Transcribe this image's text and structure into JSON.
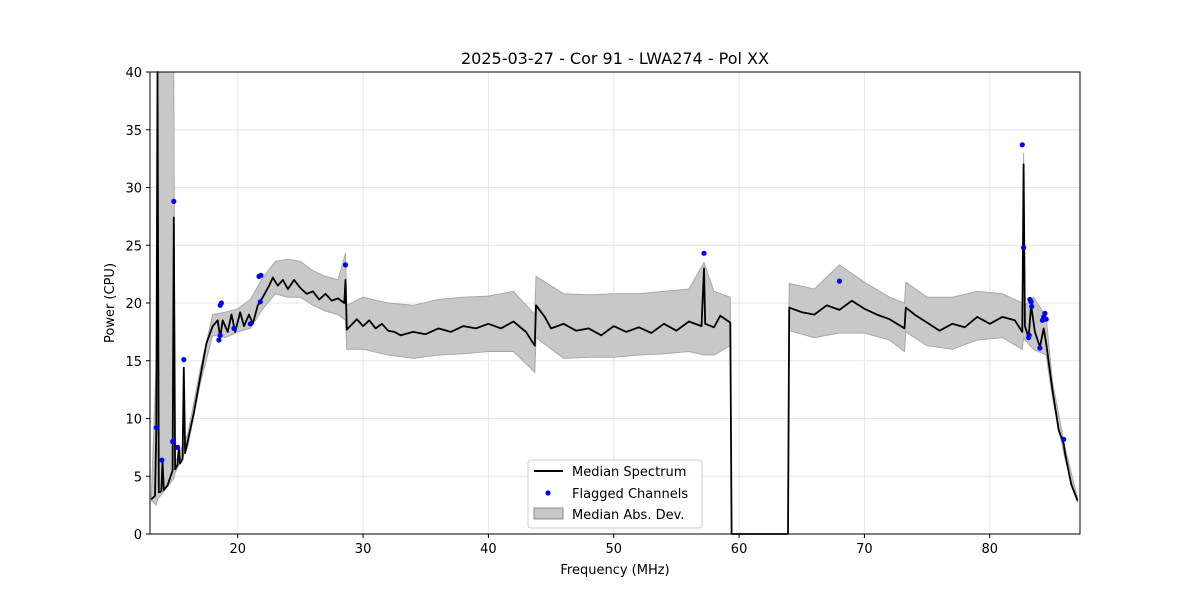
{
  "chart_data": {
    "type": "line",
    "title": "2025-03-27 - Cor 91 - LWA274 - Pol XX",
    "xlabel": "Frequency (MHz)",
    "ylabel": "Power (CPU)",
    "xlim": [
      13,
      87.2
    ],
    "ylim": [
      0,
      40
    ],
    "grid": true,
    "x_ticks": [
      20,
      30,
      40,
      50,
      60,
      70,
      80
    ],
    "y_ticks": [
      0,
      5,
      10,
      15,
      20,
      25,
      30,
      35,
      40
    ],
    "legend_position": "bottom-center",
    "legend": [
      "Median Spectrum",
      "Flagged Channels",
      "Median Abs. Dev."
    ],
    "series": [
      {
        "name": "Median Spectrum",
        "color": "#000000",
        "points": [
          [
            13.1,
            3.0
          ],
          [
            13.4,
            3.3
          ],
          [
            13.5,
            9.0
          ],
          [
            13.6,
            40.0
          ],
          [
            13.7,
            3.6
          ],
          [
            13.9,
            3.7
          ],
          [
            14.0,
            6.3
          ],
          [
            14.1,
            3.8
          ],
          [
            14.4,
            4.2
          ],
          [
            14.8,
            5.5
          ],
          [
            14.9,
            27.4
          ],
          [
            15.0,
            5.6
          ],
          [
            15.2,
            6.0
          ],
          [
            15.3,
            7.5
          ],
          [
            15.4,
            6.1
          ],
          [
            15.6,
            6.5
          ],
          [
            15.7,
            14.4
          ],
          [
            15.8,
            7.0
          ],
          [
            16.0,
            8.0
          ],
          [
            16.5,
            10.5
          ],
          [
            17.0,
            13.5
          ],
          [
            17.5,
            16.5
          ],
          [
            18.0,
            18.0
          ],
          [
            18.4,
            18.5
          ],
          [
            18.6,
            17.0
          ],
          [
            18.8,
            18.5
          ],
          [
            19.2,
            17.5
          ],
          [
            19.5,
            19.0
          ],
          [
            19.8,
            17.5
          ],
          [
            20.2,
            19.2
          ],
          [
            20.5,
            18.0
          ],
          [
            20.9,
            19.0
          ],
          [
            21.2,
            18.2
          ],
          [
            21.6,
            19.8
          ],
          [
            22.0,
            20.5
          ],
          [
            22.5,
            21.5
          ],
          [
            22.8,
            22.2
          ],
          [
            23.2,
            21.5
          ],
          [
            23.6,
            22.0
          ],
          [
            24.0,
            21.2
          ],
          [
            24.5,
            22.0
          ],
          [
            25.0,
            21.3
          ],
          [
            25.5,
            20.8
          ],
          [
            26.0,
            21.0
          ],
          [
            26.5,
            20.3
          ],
          [
            27.0,
            20.8
          ],
          [
            27.5,
            20.2
          ],
          [
            28.0,
            20.4
          ],
          [
            28.5,
            20.0
          ],
          [
            28.6,
            22.0
          ],
          [
            28.7,
            17.7
          ],
          [
            29.5,
            18.6
          ],
          [
            30.0,
            18.0
          ],
          [
            30.5,
            18.5
          ],
          [
            31.0,
            17.8
          ],
          [
            31.5,
            18.2
          ],
          [
            32.0,
            17.6
          ],
          [
            32.5,
            17.5
          ],
          [
            33.0,
            17.2
          ],
          [
            34.0,
            17.5
          ],
          [
            35.0,
            17.3
          ],
          [
            36.0,
            17.8
          ],
          [
            37.0,
            17.5
          ],
          [
            38.0,
            18.0
          ],
          [
            39.0,
            17.8
          ],
          [
            40.0,
            18.2
          ],
          [
            41.0,
            17.8
          ],
          [
            42.0,
            18.4
          ],
          [
            43.0,
            17.5
          ],
          [
            43.7,
            16.3
          ],
          [
            43.8,
            19.8
          ],
          [
            44.5,
            18.8
          ],
          [
            45.0,
            17.8
          ],
          [
            46.0,
            18.2
          ],
          [
            47.0,
            17.6
          ],
          [
            48.0,
            17.8
          ],
          [
            49.0,
            17.2
          ],
          [
            50.0,
            18.0
          ],
          [
            51.0,
            17.5
          ],
          [
            52.0,
            17.9
          ],
          [
            53.0,
            17.4
          ],
          [
            54.0,
            18.2
          ],
          [
            55.0,
            17.6
          ],
          [
            56.0,
            18.4
          ],
          [
            57.0,
            18.0
          ],
          [
            57.2,
            23.0
          ],
          [
            57.3,
            18.2
          ],
          [
            58.0,
            17.9
          ],
          [
            58.5,
            18.9
          ],
          [
            59.3,
            18.3
          ],
          [
            59.4,
            0.0
          ],
          [
            63.9,
            0.0
          ],
          [
            64.0,
            19.6
          ],
          [
            65.0,
            19.2
          ],
          [
            66.0,
            19.0
          ],
          [
            67.0,
            19.8
          ],
          [
            68.0,
            19.4
          ],
          [
            69.0,
            20.2
          ],
          [
            70.0,
            19.5
          ],
          [
            71.0,
            19.0
          ],
          [
            72.0,
            18.6
          ],
          [
            73.2,
            17.8
          ],
          [
            73.3,
            19.6
          ],
          [
            74.0,
            19.0
          ],
          [
            75.0,
            18.3
          ],
          [
            76.0,
            17.6
          ],
          [
            77.0,
            18.2
          ],
          [
            78.0,
            17.9
          ],
          [
            79.0,
            18.8
          ],
          [
            80.0,
            18.2
          ],
          [
            81.0,
            18.8
          ],
          [
            82.0,
            18.5
          ],
          [
            82.6,
            17.5
          ],
          [
            82.7,
            32.0
          ],
          [
            82.8,
            18.0
          ],
          [
            83.1,
            17.0
          ],
          [
            83.3,
            19.8
          ],
          [
            83.6,
            17.5
          ],
          [
            84.0,
            16.2
          ],
          [
            84.3,
            17.8
          ],
          [
            84.5,
            16.5
          ],
          [
            85.0,
            12.5
          ],
          [
            85.5,
            9.0
          ],
          [
            85.9,
            7.8
          ],
          [
            86.0,
            7.0
          ],
          [
            86.5,
            4.3
          ],
          [
            87.0,
            2.9
          ]
        ]
      },
      {
        "name": "Flagged Channels",
        "color": "#0000ff",
        "points": [
          [
            13.5,
            9.2
          ],
          [
            13.95,
            6.4
          ],
          [
            14.8,
            8.0
          ],
          [
            14.9,
            28.8
          ],
          [
            15.2,
            7.5
          ],
          [
            15.7,
            15.1
          ],
          [
            18.5,
            16.8
          ],
          [
            18.6,
            17.2
          ],
          [
            18.6,
            19.8
          ],
          [
            18.7,
            20.0
          ],
          [
            19.7,
            17.8
          ],
          [
            21.0,
            18.2
          ],
          [
            21.7,
            22.3
          ],
          [
            21.8,
            20.1
          ],
          [
            21.85,
            22.4
          ],
          [
            28.6,
            23.3
          ],
          [
            57.2,
            24.3
          ],
          [
            68.0,
            21.9
          ],
          [
            82.6,
            33.7
          ],
          [
            82.7,
            24.8
          ],
          [
            83.1,
            17.0
          ],
          [
            83.15,
            17.2
          ],
          [
            83.2,
            20.3
          ],
          [
            83.3,
            20.1
          ],
          [
            83.35,
            19.7
          ],
          [
            84.0,
            16.1
          ],
          [
            84.2,
            18.5
          ],
          [
            84.3,
            18.8
          ],
          [
            84.4,
            19.1
          ],
          [
            84.5,
            18.6
          ],
          [
            85.9,
            8.2
          ]
        ]
      },
      {
        "name": "Median Abs. Dev.",
        "color": "#c8c8c8",
        "points": [
          [
            13.1,
            2.9,
            3.2
          ],
          [
            13.5,
            2.5,
            15.0
          ],
          [
            13.6,
            3.0,
            40.0
          ],
          [
            14.9,
            4.8,
            40.0
          ],
          [
            15.0,
            5.3,
            6.2
          ],
          [
            16.0,
            7.5,
            8.6
          ],
          [
            17.0,
            13.0,
            14.2
          ],
          [
            18.0,
            17.2,
            19.0
          ],
          [
            19.0,
            17.0,
            19.2
          ],
          [
            20.0,
            17.5,
            19.5
          ],
          [
            21.0,
            17.8,
            20.3
          ],
          [
            22.0,
            19.5,
            22.2
          ],
          [
            23.0,
            20.8,
            23.6
          ],
          [
            24.0,
            20.5,
            23.8
          ],
          [
            25.0,
            20.5,
            23.6
          ],
          [
            26.0,
            19.8,
            22.8
          ],
          [
            27.0,
            19.3,
            22.3
          ],
          [
            28.0,
            19.0,
            22.0
          ],
          [
            28.6,
            18.5,
            24.3
          ],
          [
            28.7,
            16.0,
            19.8
          ],
          [
            30.0,
            16.0,
            20.5
          ],
          [
            32.0,
            15.5,
            20.0
          ],
          [
            34.0,
            15.2,
            19.8
          ],
          [
            36.0,
            15.5,
            20.3
          ],
          [
            38.0,
            15.6,
            20.5
          ],
          [
            40.0,
            15.8,
            20.6
          ],
          [
            42.0,
            15.8,
            21.0
          ],
          [
            43.7,
            14.0,
            19.0
          ],
          [
            43.8,
            17.0,
            22.3
          ],
          [
            46.0,
            15.2,
            20.8
          ],
          [
            48.0,
            15.3,
            20.7
          ],
          [
            50.0,
            15.3,
            20.8
          ],
          [
            52.0,
            15.5,
            20.8
          ],
          [
            54.0,
            15.6,
            21.0
          ],
          [
            56.0,
            15.8,
            21.2
          ],
          [
            57.2,
            15.5,
            23.5
          ],
          [
            58.0,
            15.5,
            21.0
          ],
          [
            59.3,
            16.3,
            20.5
          ],
          [
            59.4,
            0.0,
            0.0
          ],
          [
            63.9,
            0.0,
            0.0
          ],
          [
            64.0,
            17.6,
            21.7
          ],
          [
            66.0,
            17.0,
            21.2
          ],
          [
            68.0,
            17.4,
            23.3
          ],
          [
            70.0,
            17.4,
            21.8
          ],
          [
            72.0,
            16.8,
            20.5
          ],
          [
            73.2,
            15.8,
            20.0
          ],
          [
            73.3,
            17.5,
            21.8
          ],
          [
            75.0,
            16.3,
            20.5
          ],
          [
            77.0,
            16.0,
            20.5
          ],
          [
            79.0,
            16.8,
            21.0
          ],
          [
            81.0,
            17.0,
            20.8
          ],
          [
            82.6,
            16.0,
            20.0
          ],
          [
            82.7,
            17.0,
            33.0
          ],
          [
            82.8,
            16.8,
            19.8
          ],
          [
            83.5,
            16.0,
            20.5
          ],
          [
            84.5,
            15.5,
            18.8
          ],
          [
            85.0,
            11.8,
            13.2
          ],
          [
            86.0,
            6.5,
            7.5
          ],
          [
            87.0,
            2.7,
            3.1
          ]
        ]
      }
    ]
  }
}
